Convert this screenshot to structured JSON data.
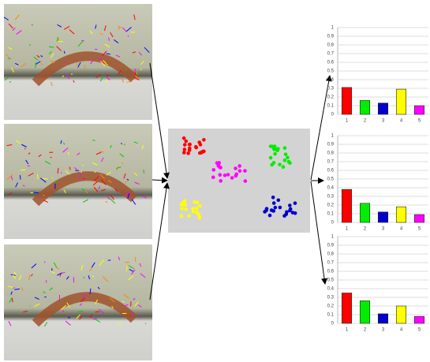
{
  "chart_data": [
    {
      "type": "bar",
      "categories": [
        "1",
        "2",
        "3",
        "4",
        "5"
      ],
      "values": [
        0.31,
        0.16,
        0.13,
        0.29,
        0.1
      ],
      "colors": [
        "#ff0000",
        "#00ee00",
        "#0000cc",
        "#ffff00",
        "#ff00ff"
      ],
      "ylim": [
        0,
        1
      ],
      "yticks": [
        0,
        0.1,
        0.2,
        0.3,
        0.4,
        0.5,
        0.6,
        0.7,
        0.8,
        0.9,
        1
      ],
      "grid": true
    },
    {
      "type": "bar",
      "categories": [
        "1",
        "2",
        "3",
        "4",
        "5"
      ],
      "values": [
        0.38,
        0.22,
        0.12,
        0.18,
        0.09
      ],
      "colors": [
        "#ff0000",
        "#00ee00",
        "#0000cc",
        "#ffff00",
        "#ff00ff"
      ],
      "ylim": [
        0,
        1
      ],
      "yticks": [
        0,
        0.1,
        0.2,
        0.3,
        0.4,
        0.5,
        0.6,
        0.7,
        0.8,
        0.9,
        1
      ],
      "grid": true
    },
    {
      "type": "bar",
      "categories": [
        "1",
        "2",
        "3",
        "4",
        "5"
      ],
      "values": [
        0.35,
        0.26,
        0.11,
        0.2,
        0.08
      ],
      "colors": [
        "#ff0000",
        "#00ee00",
        "#0000cc",
        "#ffff00",
        "#ff00ff"
      ],
      "ylim": [
        0,
        1
      ],
      "yticks": [
        0,
        0.1,
        0.2,
        0.3,
        0.4,
        0.5,
        0.6,
        0.7,
        0.8,
        0.9,
        1
      ],
      "grid": true
    }
  ]
}
